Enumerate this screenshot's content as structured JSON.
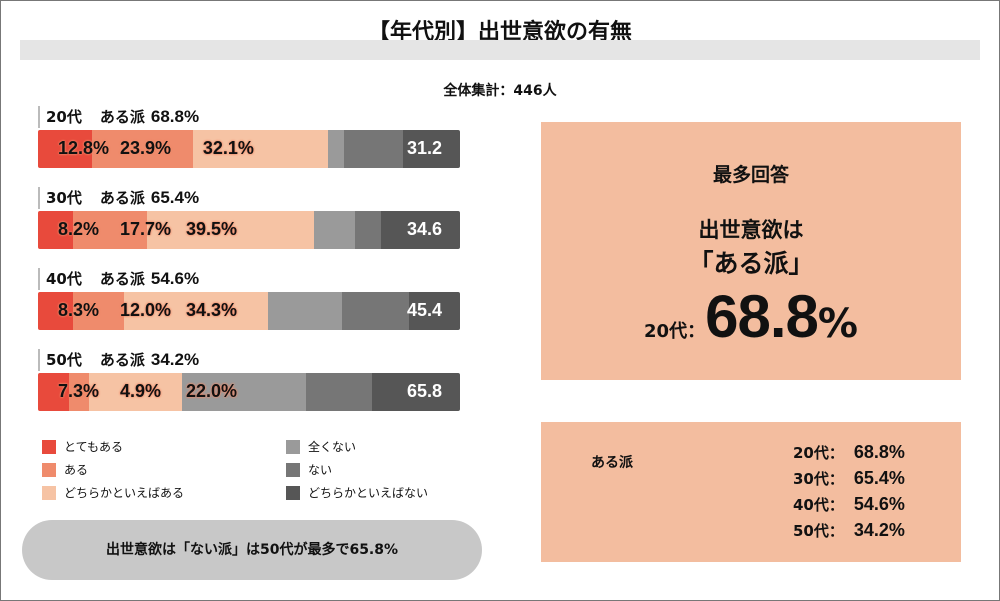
{
  "title": "【年代別】出世意欲の有無",
  "total": "全体集計：446人",
  "colors": {
    "とてもある": "#e84a3c",
    "ある": "#ef8b6c",
    "どちらかといえばある": "#f6c3a4",
    "全くない": "#9a9a9a",
    "ない": "#767676",
    "どちらかといえばない": "#565656",
    "panel": "#f3bd9f",
    "pill": "#c8c8c8"
  },
  "chart_data": {
    "type": "bar",
    "orientation": "horizontal",
    "stacked": true,
    "categories": [
      "20代",
      "30代",
      "40代",
      "50代"
    ],
    "group_label": "ある派",
    "positive_totals": [
      "68.8%",
      "65.4%",
      "54.6%",
      "34.2%"
    ],
    "negative_totals": [
      "31.2",
      "34.6",
      "45.4",
      "65.8"
    ],
    "series": [
      {
        "name": "とてもある",
        "values": [
          12.8,
          8.2,
          8.3,
          7.3
        ],
        "labels": [
          "12.8%",
          "8.2%",
          "8.3%",
          "7.3%"
        ]
      },
      {
        "name": "ある",
        "values": [
          23.9,
          17.7,
          12.0,
          4.9
        ],
        "labels": [
          "23.9%",
          "17.7%",
          "12.0%",
          "4.9%"
        ]
      },
      {
        "name": "どちらかといえばある",
        "values": [
          32.1,
          39.5,
          34.3,
          22.0
        ],
        "labels": [
          "32.1%",
          "39.5%",
          "34.3%",
          "22.0%"
        ]
      },
      {
        "name": "全くない",
        "values": [
          3.8,
          9.7,
          17.4,
          29.3
        ]
      },
      {
        "name": "ない",
        "values": [
          13.8,
          6.2,
          16.0,
          15.7
        ]
      },
      {
        "name": "どちらかといえばない",
        "values": [
          13.6,
          18.7,
          12.0,
          20.8
        ]
      }
    ],
    "xlim": [
      0,
      100
    ],
    "legend": [
      "とてもある",
      "ある",
      "どちらかといえばある",
      "全くない",
      "ない",
      "どちらかといえばない"
    ]
  },
  "summary_pill": "出世意欲は「ない派」は50代が最多で65.8%",
  "top_answer": {
    "heading": "最多回答",
    "line1": "出世意欲は",
    "line2": "「ある派」",
    "age": "20代：",
    "value": "68.8",
    "unit": "%"
  },
  "ary_list": {
    "label": "ある派",
    "rows": [
      {
        "age": "20代：",
        "value": "68.8%"
      },
      {
        "age": "30代：",
        "value": "65.4%"
      },
      {
        "age": "40代：",
        "value": "54.6%"
      },
      {
        "age": "50代：",
        "value": "34.2%"
      }
    ]
  }
}
